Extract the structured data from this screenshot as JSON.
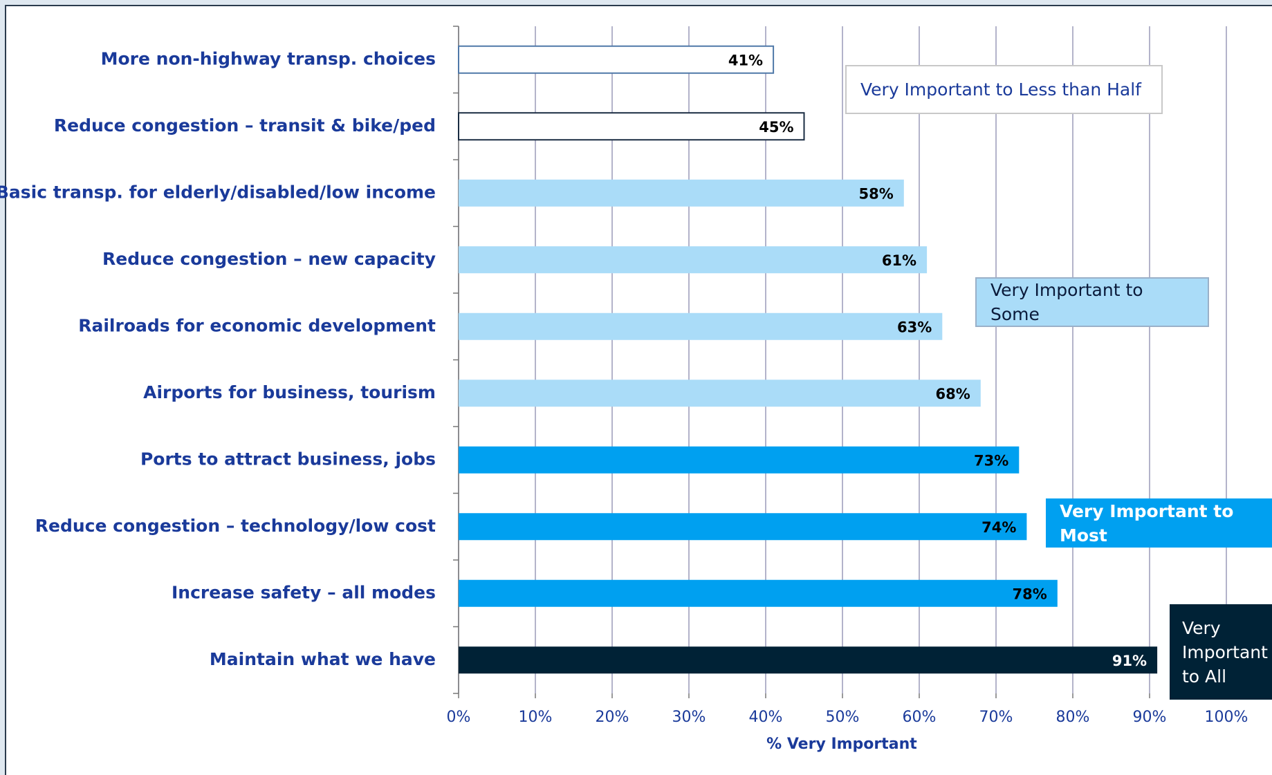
{
  "chart_data": {
    "type": "bar",
    "orientation": "horizontal",
    "categories": [
      "More non-highway transp. choices",
      "Reduce congestion – transit & bike/ped",
      "Basic transp. for elderly/disabled/low income",
      "Reduce congestion – new capacity",
      "Railroads for economic development",
      "Airports for business, tourism",
      "Ports to attract business, jobs",
      "Reduce congestion – technology/low cost",
      "Increase safety – all modes",
      "Maintain what we have"
    ],
    "values": [
      41,
      45,
      58,
      61,
      63,
      68,
      73,
      74,
      78,
      91
    ],
    "value_labels": [
      "41%",
      "45%",
      "58%",
      "61%",
      "63%",
      "68%",
      "73%",
      "74%",
      "78%",
      "91%"
    ],
    "colors": [
      "#ffffff",
      "#ffffff",
      "#aadcf8",
      "#aadcf8",
      "#aadcf8",
      "#aadcf8",
      "#00a0f0",
      "#00a0f0",
      "#00a0f0",
      "#002236"
    ],
    "edge_colors": [
      "#4f78a8",
      "#1a2c42",
      "none",
      "none",
      "none",
      "none",
      "none",
      "none",
      "none",
      "none"
    ],
    "xlim": [
      0,
      100
    ],
    "xticks": [
      {
        "value": 0,
        "label": "0%"
      },
      {
        "value": 10,
        "label": "10%"
      },
      {
        "value": 20,
        "label": "20%"
      },
      {
        "value": 30,
        "label": "30%"
      },
      {
        "value": 40,
        "label": "40%"
      },
      {
        "value": 50,
        "label": "50%"
      },
      {
        "value": 60,
        "label": "60%"
      },
      {
        "value": 70,
        "label": "70%"
      },
      {
        "value": 80,
        "label": "80%"
      },
      {
        "value": 90,
        "label": "90%"
      },
      {
        "value": 100,
        "label": "100%"
      }
    ],
    "xlabel": "% Very Important",
    "grid": true,
    "annotations": [
      "Very Important to Less than Half",
      "Very Important to Some",
      "Very Important to Most",
      "Very Important to All"
    ]
  }
}
